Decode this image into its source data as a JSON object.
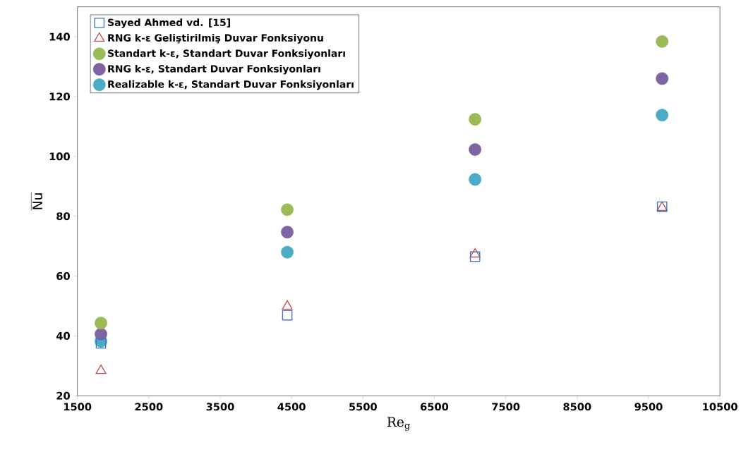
{
  "chart_data": {
    "type": "scatter",
    "xlabel": "Re$_{g}$",
    "ylabel": "\\overline{\\mathrm{Nu}}",
    "xlim": [
      1500,
      10500
    ],
    "xticks": [
      1500,
      2500,
      3500,
      4500,
      5500,
      6500,
      7500,
      8500,
      9500,
      10500
    ],
    "ylim": [
      20,
      150
    ],
    "yticks": [
      20,
      40,
      60,
      80,
      100,
      120,
      140
    ],
    "legend": "top left",
    "grid": false,
    "series": [
      {
        "name": "Sayed Ahmed vd. [15]",
        "color": "#4472c4",
        "marker": "square",
        "x": [
          1830,
          4440,
          7070,
          9690
        ],
        "values": [
          37.5,
          46.9,
          66.5,
          83.2
        ]
      },
      {
        "name": "RNG k-ε Geliştirilmiş Duvar Fonksiyonu",
        "color": "#c0504d",
        "marker": "triangle",
        "x": [
          1830,
          4440,
          7070,
          9690
        ],
        "values": [
          28.4,
          49.9,
          67.3,
          82.9
        ]
      },
      {
        "name": "Standart k-ε, Standart Duvar Fonksiyonları",
        "color": "#9bbb59",
        "marker": "circle",
        "x": [
          1830,
          4440,
          7070,
          9690
        ],
        "values": [
          44.3,
          82.2,
          112.4,
          138.4
        ]
      },
      {
        "name": "RNG k-ε, Standart Duvar Fonksiyonları",
        "color": "#8064a2",
        "marker": "circle",
        "x": [
          1830,
          4440,
          7070,
          9690
        ],
        "values": [
          40.6,
          74.7,
          102.3,
          126
        ]
      },
      {
        "name": "Realizable k-ε, Standart Duvar Fonksiyonları",
        "color": "#4bacc6",
        "marker": "circle",
        "x": [
          1830,
          4440,
          7070,
          9690
        ],
        "values": [
          38.2,
          68,
          92.3,
          113.8
        ]
      }
    ]
  }
}
